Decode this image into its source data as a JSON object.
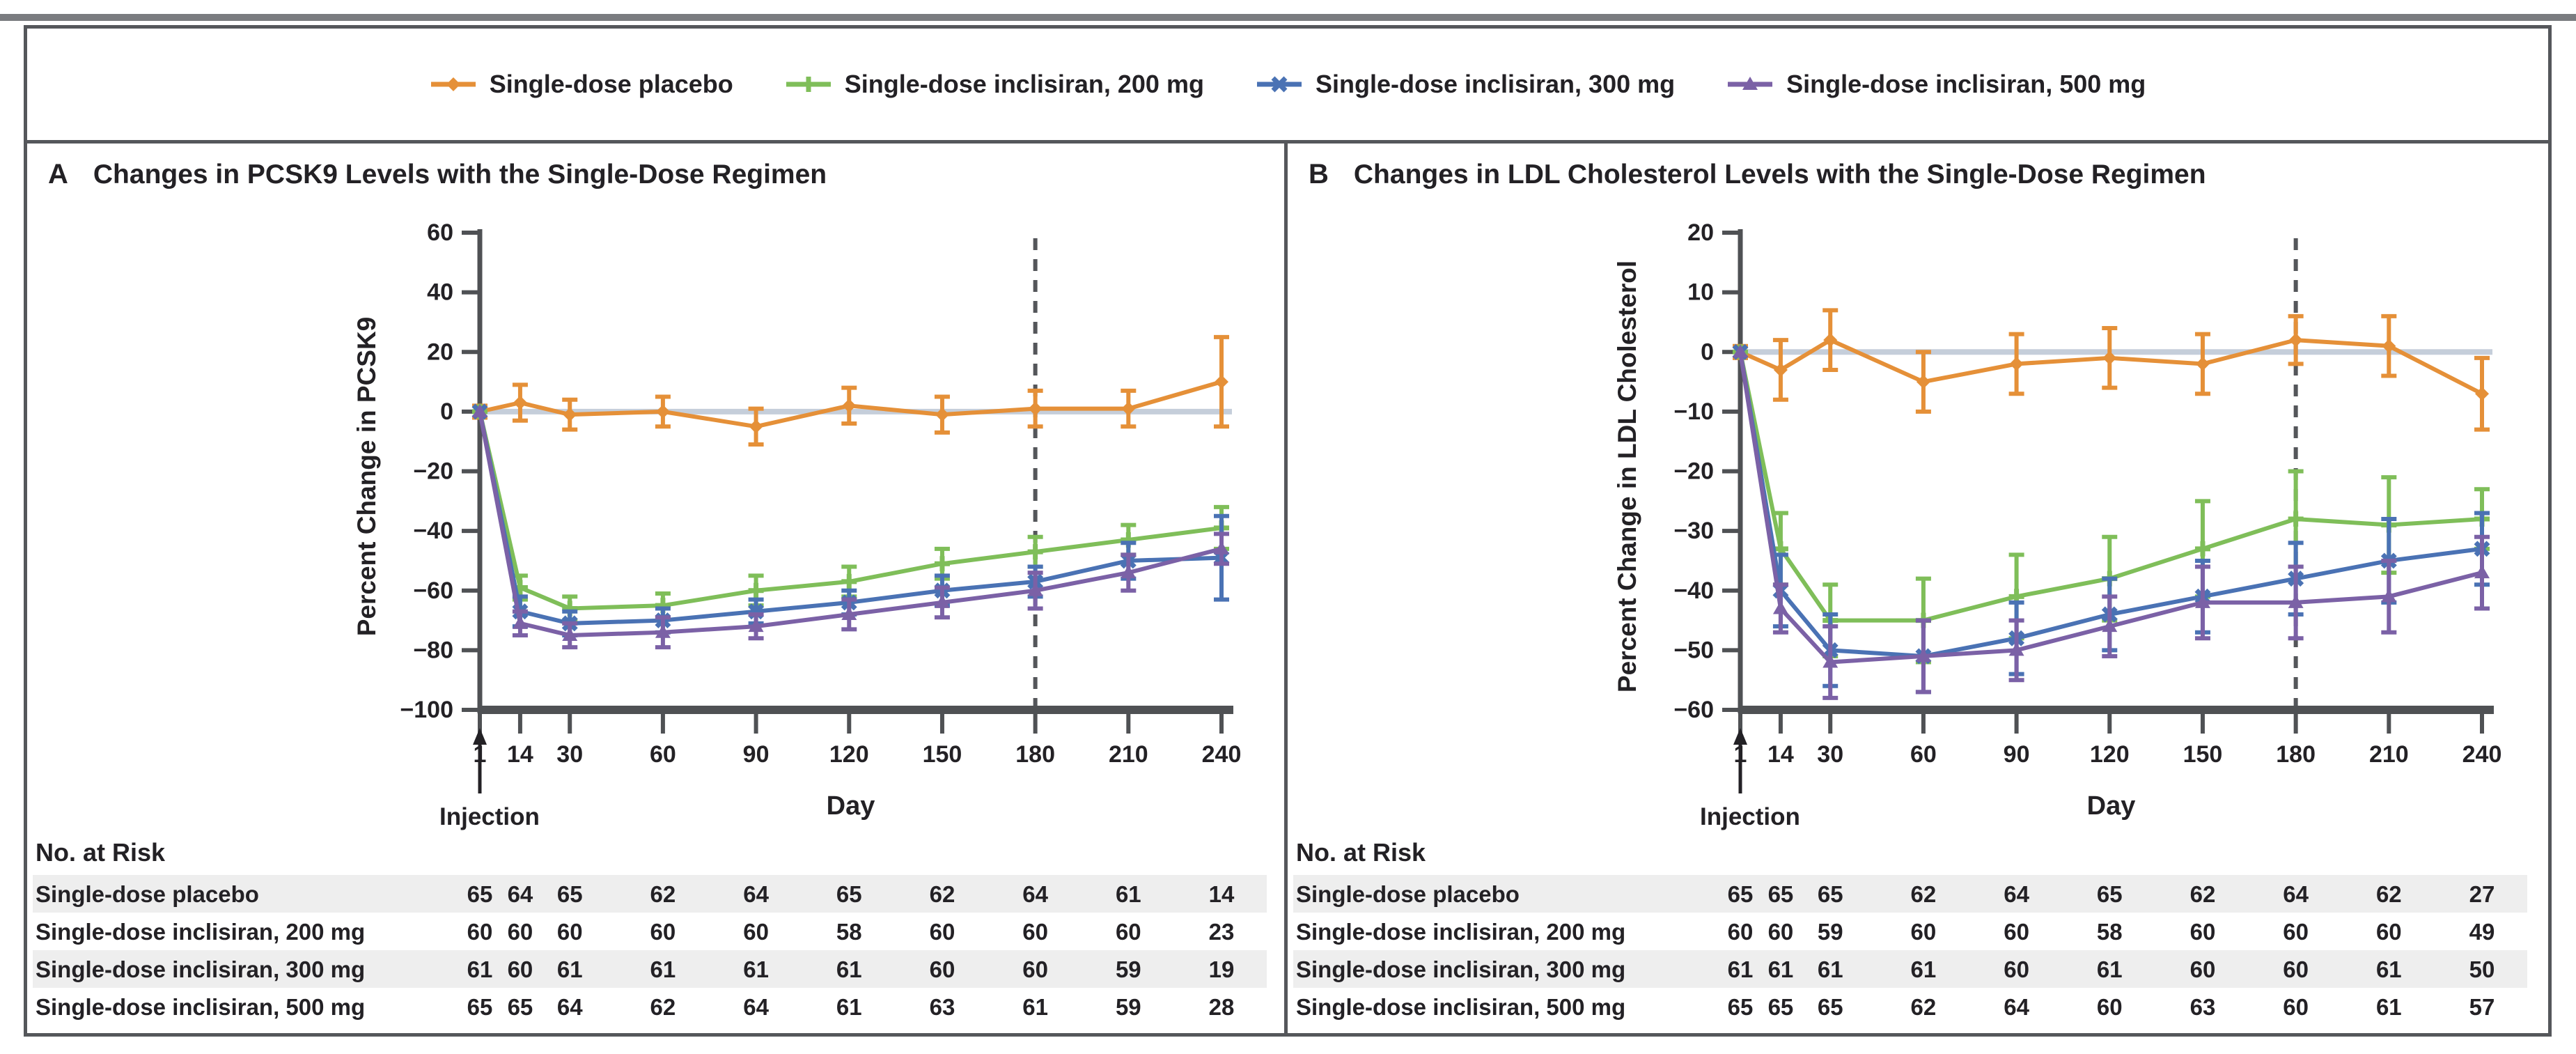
{
  "legend": {
    "items": [
      {
        "label": "Single-dose placebo",
        "color": "#E59038",
        "marker": "diamond"
      },
      {
        "label": "Single-dose inclisiran, 200 mg",
        "color": "#7FBE59",
        "marker": "plus"
      },
      {
        "label": "Single-dose inclisiran, 300 mg",
        "color": "#4A72B4",
        "marker": "x"
      },
      {
        "label": "Single-dose inclisiran, 500 mg",
        "color": "#7B61A6",
        "marker": "triangle"
      }
    ]
  },
  "colors": {
    "placebo": "#E59038",
    "inclisiran_200": "#7FBE59",
    "inclisiran_300": "#4A72B4",
    "inclisiran_500": "#7B61A6",
    "zero_line": "#C5CEDA",
    "axis": "#4F5154",
    "frame": "#55575B",
    "dashed_line": "#54565A",
    "row_shading": "#EEEEEE",
    "text": "#232125"
  },
  "chart_data": [
    {
      "type": "line",
      "panel_letter": "A",
      "title": "Changes in PCSK9 Levels with the Single-Dose Regimen",
      "ylabel": "Percent Change in PCSK9",
      "xlabel": "Day",
      "injection_label": "Injection",
      "at_risk_title": "No. at Risk",
      "ylim": [
        -100,
        60
      ],
      "yticks": [
        60,
        40,
        20,
        0,
        -20,
        -40,
        -60,
        -80,
        -100
      ],
      "days": [
        1,
        14,
        30,
        60,
        90,
        120,
        150,
        180,
        210,
        240
      ],
      "dashed_day": 180,
      "grid": false,
      "series": [
        {
          "name": "Single-dose placebo",
          "color": "#E59038",
          "marker": "diamond",
          "values": [
            0,
            3,
            -1,
            0,
            -5,
            2,
            -1,
            1,
            1,
            10
          ],
          "err": [
            2,
            6,
            5,
            5,
            6,
            6,
            6,
            6,
            6,
            15
          ]
        },
        {
          "name": "Single-dose inclisiran, 200 mg",
          "color": "#7FBE59",
          "marker": "plus",
          "values": [
            0,
            -59,
            -66,
            -65,
            -60,
            -57,
            -51,
            -47,
            -43,
            -39
          ],
          "err": [
            0,
            4,
            4,
            4,
            5,
            5,
            5,
            5,
            5,
            7
          ]
        },
        {
          "name": "Single-dose inclisiran, 300 mg",
          "color": "#4A72B4",
          "marker": "x",
          "values": [
            0,
            -67,
            -71,
            -70,
            -67,
            -64,
            -60,
            -57,
            -50,
            -49
          ],
          "err": [
            0,
            5,
            4,
            4,
            4,
            4,
            5,
            5,
            6,
            14
          ]
        },
        {
          "name": "Single-dose inclisiran, 500 mg",
          "color": "#7B61A6",
          "marker": "triangle",
          "values": [
            0,
            -71,
            -75,
            -74,
            -72,
            -68,
            -64,
            -60,
            -54,
            -46
          ],
          "err": [
            0,
            4,
            4,
            5,
            4,
            5,
            5,
            6,
            6,
            5
          ]
        }
      ],
      "at_risk": [
        {
          "label": "Single-dose placebo",
          "counts": [
            65,
            64,
            65,
            62,
            64,
            65,
            62,
            64,
            61,
            14
          ]
        },
        {
          "label": "Single-dose inclisiran, 200 mg",
          "counts": [
            60,
            60,
            60,
            60,
            60,
            58,
            60,
            60,
            60,
            23
          ]
        },
        {
          "label": "Single-dose inclisiran, 300 mg",
          "counts": [
            61,
            60,
            61,
            61,
            61,
            61,
            60,
            60,
            59,
            19
          ]
        },
        {
          "label": "Single-dose inclisiran, 500 mg",
          "counts": [
            65,
            65,
            64,
            62,
            64,
            61,
            63,
            61,
            59,
            28
          ]
        }
      ]
    },
    {
      "type": "line",
      "panel_letter": "B",
      "title": "Changes in LDL Cholesterol Levels with the Single-Dose Regimen",
      "ylabel": "Percent Change in LDL Cholesterol",
      "xlabel": "Day",
      "injection_label": "Injection",
      "at_risk_title": "No. at Risk",
      "ylim": [
        -60,
        20
      ],
      "yticks": [
        20,
        10,
        0,
        -10,
        -20,
        -30,
        -40,
        -50,
        -60
      ],
      "days": [
        1,
        14,
        30,
        60,
        90,
        120,
        150,
        180,
        210,
        240
      ],
      "dashed_day": 180,
      "grid": false,
      "series": [
        {
          "name": "Single-dose placebo",
          "color": "#E59038",
          "marker": "diamond",
          "values": [
            0,
            -3,
            2,
            -5,
            -2,
            -1,
            -2,
            2,
            1,
            -7
          ],
          "err": [
            1,
            5,
            5,
            5,
            5,
            5,
            5,
            4,
            5,
            6
          ]
        },
        {
          "name": "Single-dose inclisiran, 200 mg",
          "color": "#7FBE59",
          "marker": "plus",
          "values": [
            0,
            -33,
            -45,
            -45,
            -41,
            -38,
            -33,
            -28,
            -29,
            -28
          ],
          "err": [
            0,
            6,
            6,
            7,
            7,
            7,
            8,
            8,
            8,
            5
          ]
        },
        {
          "name": "Single-dose inclisiran, 300 mg",
          "color": "#4A72B4",
          "marker": "x",
          "values": [
            0,
            -40,
            -50,
            -51,
            -48,
            -44,
            -41,
            -38,
            -35,
            -33
          ],
          "err": [
            0,
            6,
            6,
            6,
            6,
            6,
            6,
            6,
            7,
            6
          ]
        },
        {
          "name": "Single-dose inclisiran, 500 mg",
          "color": "#7B61A6",
          "marker": "triangle",
          "values": [
            0,
            -43,
            -52,
            -51,
            -50,
            -46,
            -42,
            -42,
            -41,
            -37
          ],
          "err": [
            0,
            4,
            6,
            6,
            5,
            5,
            6,
            6,
            6,
            6
          ]
        }
      ],
      "at_risk": [
        {
          "label": "Single-dose placebo",
          "counts": [
            65,
            65,
            65,
            62,
            64,
            65,
            62,
            64,
            62,
            27
          ]
        },
        {
          "label": "Single-dose inclisiran, 200 mg",
          "counts": [
            60,
            60,
            59,
            60,
            60,
            58,
            60,
            60,
            60,
            49
          ]
        },
        {
          "label": "Single-dose inclisiran, 300 mg",
          "counts": [
            61,
            61,
            61,
            61,
            60,
            61,
            60,
            60,
            61,
            50
          ]
        },
        {
          "label": "Single-dose inclisiran, 500 mg",
          "counts": [
            65,
            65,
            65,
            62,
            64,
            60,
            63,
            60,
            61,
            57
          ]
        }
      ]
    }
  ]
}
